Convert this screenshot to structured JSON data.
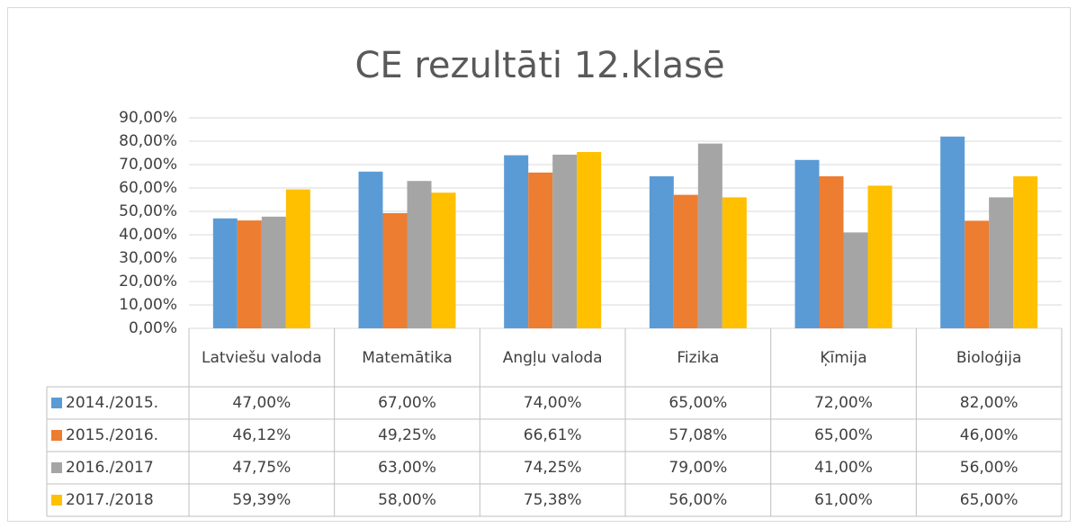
{
  "chart_data": {
    "type": "bar",
    "title": "CE rezultāti 12.klasē",
    "categories": [
      "Latviešu valoda",
      "Matemātika",
      "Angļu valoda",
      "Fizika",
      "Ķīmija",
      "Bioloģija"
    ],
    "series": [
      {
        "name": "2014./2015.",
        "color": "#5b9bd5",
        "values": [
          47,
          67,
          74,
          65,
          72,
          82
        ],
        "value_labels": [
          "47,00%",
          "67,00%",
          "74,00%",
          "65,00%",
          "72,00%",
          "82,00%"
        ]
      },
      {
        "name": "2015./2016.",
        "color": "#ed7d31",
        "values": [
          46.12,
          49.25,
          66.61,
          57.08,
          65,
          46
        ],
        "value_labels": [
          "46,12%",
          "49,25%",
          "66,61%",
          "57,08%",
          "65,00%",
          "46,00%"
        ]
      },
      {
        "name": "2016./2017",
        "color": "#a5a5a5",
        "values": [
          47.75,
          63,
          74.25,
          79,
          41,
          56
        ],
        "value_labels": [
          "47,75%",
          "63,00%",
          "74,25%",
          "79,00%",
          "41,00%",
          "56,00%"
        ]
      },
      {
        "name": "2017./2018",
        "color": "#ffc000",
        "values": [
          59.39,
          58,
          75.38,
          56,
          61,
          65
        ],
        "value_labels": [
          "59,39%",
          "58,00%",
          "75,38%",
          "56,00%",
          "61,00%",
          "65,00%"
        ]
      }
    ],
    "ylim": [
      0,
      90
    ],
    "yticks": [
      {
        "value": 0,
        "label": "0,00%"
      },
      {
        "value": 10,
        "label": "10,00%"
      },
      {
        "value": 20,
        "label": "20,00%"
      },
      {
        "value": 30,
        "label": "30,00%"
      },
      {
        "value": 40,
        "label": "40,00%"
      },
      {
        "value": 50,
        "label": "50,00%"
      },
      {
        "value": 60,
        "label": "60,00%"
      },
      {
        "value": 70,
        "label": "70,00%"
      },
      {
        "value": 80,
        "label": "80,00%"
      },
      {
        "value": 90,
        "label": "90,00%"
      }
    ],
    "grid": true
  }
}
